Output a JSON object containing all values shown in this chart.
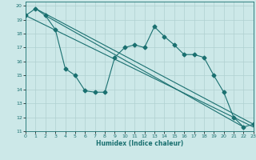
{
  "title": "",
  "xlabel": "Humidex (Indice chaleur)",
  "ylabel": "",
  "xlim": [
    0,
    23
  ],
  "ylim": [
    11,
    20.3
  ],
  "xticks": [
    0,
    1,
    2,
    3,
    4,
    5,
    6,
    7,
    8,
    9,
    10,
    11,
    12,
    13,
    14,
    15,
    16,
    17,
    18,
    19,
    20,
    21,
    22,
    23
  ],
  "yticks": [
    11,
    12,
    13,
    14,
    15,
    16,
    17,
    18,
    19,
    20
  ],
  "bg_color": "#cce8e8",
  "grid_color": "#b0d0d0",
  "line_color": "#1a7070",
  "wavy_x": [
    0,
    1,
    2,
    3,
    4,
    5,
    6,
    7,
    8,
    9,
    10,
    11,
    12,
    13,
    14,
    15,
    16,
    17,
    18,
    19,
    20,
    21,
    22,
    23
  ],
  "wavy_y": [
    19.3,
    19.8,
    19.3,
    18.3,
    15.5,
    15.0,
    13.9,
    13.8,
    13.8,
    16.3,
    17.0,
    17.2,
    17.0,
    18.5,
    17.8,
    17.2,
    16.5,
    16.5,
    16.3,
    15.0,
    13.8,
    12.0,
    11.3,
    11.5
  ],
  "line1_x": [
    0,
    23
  ],
  "line1_y": [
    19.3,
    11.3
  ],
  "line2_x": [
    1,
    23
  ],
  "line2_y": [
    19.8,
    11.5
  ],
  "line3_x": [
    2,
    22
  ],
  "line3_y": [
    19.3,
    11.3
  ],
  "marker": "D",
  "markersize": 2.5,
  "linewidth": 0.8
}
